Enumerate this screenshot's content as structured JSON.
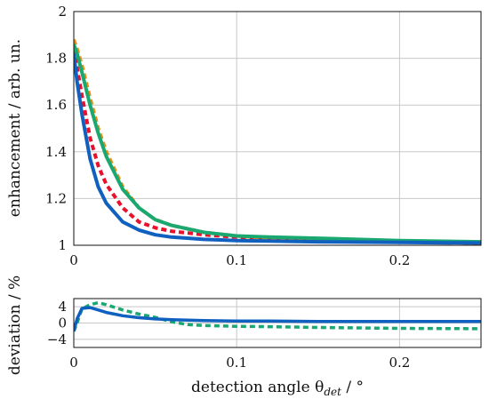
{
  "chart_data": [
    {
      "id": "top",
      "type": "line",
      "title": "",
      "xlabel": "",
      "ylabel": "enhancement / arb. un.",
      "xlim": [
        0,
        0.25
      ],
      "ylim": [
        1,
        2
      ],
      "x_ticks": [
        0,
        0.1,
        0.2
      ],
      "x_tick_labels": [
        "0",
        "0.1",
        "0.2"
      ],
      "y_ticks": [
        1,
        1.2,
        1.4,
        1.6,
        1.8,
        2
      ],
      "y_tick_labels": [
        "1",
        "1.2",
        "1.4",
        "1.6",
        "1.8",
        "2"
      ],
      "grid": true,
      "series": [
        {
          "color": "#e8102a",
          "style": "dashed",
          "x": [
            0,
            0.002,
            0.005,
            0.01,
            0.015,
            0.02,
            0.03,
            0.04,
            0.05,
            0.06,
            0.08,
            0.1,
            0.12,
            0.15,
            0.2,
            0.25
          ],
          "values": [
            1.84,
            1.76,
            1.64,
            1.46,
            1.34,
            1.26,
            1.16,
            1.1,
            1.075,
            1.06,
            1.045,
            1.035,
            1.03,
            1.025,
            1.015,
            1.01
          ]
        },
        {
          "color": "#f08a10",
          "style": "dashed",
          "x": [
            0,
            0.002,
            0.005,
            0.01,
            0.015,
            0.02,
            0.03,
            0.04,
            0.05,
            0.06,
            0.08,
            0.1,
            0.12,
            0.15,
            0.2,
            0.25
          ],
          "values": [
            1.88,
            1.84,
            1.77,
            1.63,
            1.5,
            1.4,
            1.25,
            1.16,
            1.11,
            1.085,
            1.055,
            1.04,
            1.03,
            1.02,
            1.015,
            1.01
          ]
        },
        {
          "color": "#18a870",
          "style": "solid",
          "x": [
            0,
            0.002,
            0.005,
            0.01,
            0.015,
            0.02,
            0.03,
            0.04,
            0.05,
            0.06,
            0.08,
            0.1,
            0.12,
            0.15,
            0.2,
            0.25
          ],
          "values": [
            1.86,
            1.82,
            1.74,
            1.6,
            1.48,
            1.38,
            1.24,
            1.16,
            1.11,
            1.085,
            1.055,
            1.04,
            1.035,
            1.03,
            1.02,
            1.015
          ]
        },
        {
          "color": "#1060c0",
          "style": "solid",
          "x": [
            0,
            0.002,
            0.005,
            0.01,
            0.015,
            0.02,
            0.03,
            0.04,
            0.05,
            0.06,
            0.08,
            0.1,
            0.12,
            0.15,
            0.2,
            0.25
          ],
          "values": [
            1.82,
            1.7,
            1.56,
            1.37,
            1.25,
            1.18,
            1.1,
            1.065,
            1.045,
            1.035,
            1.025,
            1.02,
            1.018,
            1.015,
            1.012,
            1.01
          ]
        }
      ]
    },
    {
      "id": "bottom",
      "type": "line",
      "title": "",
      "xlabel": "detection angle θdet / °",
      "ylabel": "deviation / %",
      "xlim": [
        0,
        0.25
      ],
      "ylim": [
        -6,
        6
      ],
      "x_ticks": [
        0,
        0.1,
        0.2
      ],
      "x_tick_labels": [
        "0",
        "0.1",
        "0.2"
      ],
      "y_ticks": [
        -4,
        0,
        4
      ],
      "y_tick_labels": [
        "−4",
        "0",
        "4"
      ],
      "grid": true,
      "series": [
        {
          "color": "#18a870",
          "style": "dashed",
          "x": [
            0,
            0.002,
            0.005,
            0.01,
            0.015,
            0.02,
            0.03,
            0.04,
            0.05,
            0.06,
            0.07,
            0.08,
            0.1,
            0.12,
            0.15,
            0.2,
            0.25
          ],
          "values": [
            -2,
            0,
            3.5,
            4.5,
            5,
            4.5,
            3.2,
            2.2,
            1.4,
            0.3,
            -0.4,
            -0.6,
            -0.8,
            -0.9,
            -1.1,
            -1.3,
            -1.4
          ]
        },
        {
          "color": "#1060c0",
          "style": "solid",
          "x": [
            0,
            0.002,
            0.005,
            0.01,
            0.015,
            0.02,
            0.03,
            0.04,
            0.05,
            0.06,
            0.08,
            0.1,
            0.12,
            0.15,
            0.2,
            0.25
          ],
          "values": [
            -2,
            1,
            3.6,
            3.8,
            3.2,
            2.6,
            1.8,
            1.3,
            1,
            0.8,
            0.6,
            0.5,
            0.5,
            0.4,
            0.4,
            0.4
          ]
        }
      ]
    }
  ]
}
